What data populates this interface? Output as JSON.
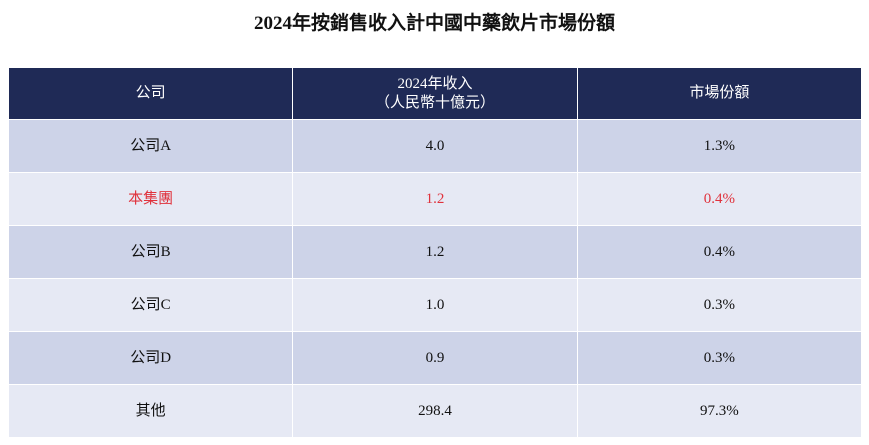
{
  "header": {
    "title": "2024年按銷售收入計中國中藥飲片市場份額"
  },
  "table": {
    "columns": [
      "公司",
      [
        "2024年收入",
        "（人民幣十億元）"
      ],
      "市場份額"
    ],
    "rows": [
      [
        "公司A",
        "4.0",
        "1.3%"
      ],
      [
        "本集團",
        "1.2",
        "0.4%"
      ],
      [
        "公司B",
        "1.2",
        "0.4%"
      ],
      [
        "公司C",
        "1.0",
        "0.3%"
      ],
      [
        "公司D",
        "0.9",
        "0.3%"
      ],
      [
        "其他",
        "298.4",
        "97.3%"
      ]
    ],
    "highlight": {
      "row": 1,
      "color": "#e0323c"
    }
  }
}
